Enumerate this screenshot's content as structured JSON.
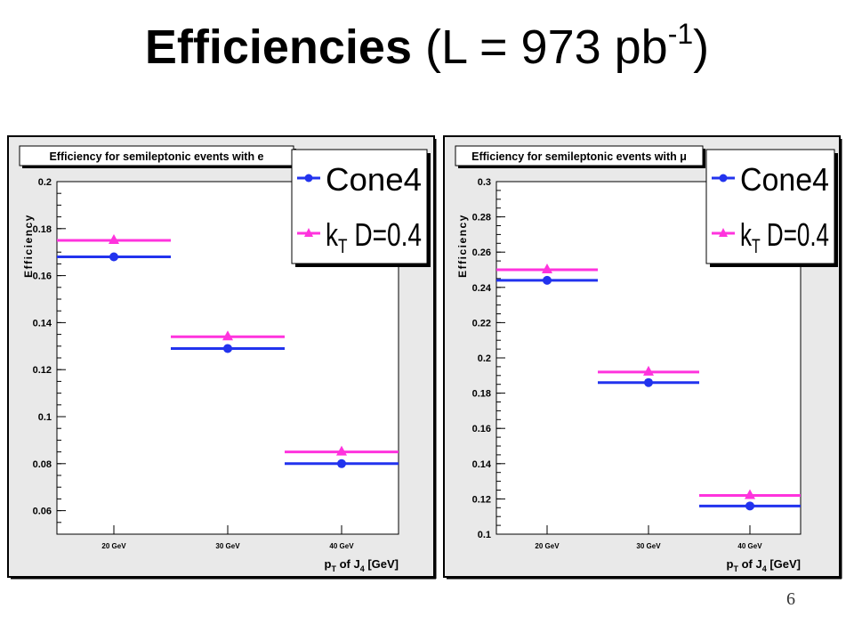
{
  "slide": {
    "title_bold": "Efficiencies",
    "title_rest": "(L = 973 pb",
    "title_sup": "-1",
    "title_close": ")",
    "page_number": "6"
  },
  "colors": {
    "cone4": "#2233ee",
    "kt": "#ff33dd",
    "frame_bg": "#e9e9e9",
    "plot_bg": "#ffffff"
  },
  "chart_data": [
    {
      "type": "scatter",
      "title": "Efficiency for semileptonic events with e",
      "ylabel": "Efficiency",
      "xlabel_main": "p",
      "xlabel_sub1": "T",
      "xlabel_mid": "of J",
      "xlabel_sub2": "4",
      "xlabel_end": "[GeV]",
      "categories": [
        "20 GeV",
        "30 GeV",
        "40 GeV"
      ],
      "ylim": [
        0.05,
        0.2
      ],
      "yticks": [
        0.06,
        0.08,
        0.1,
        0.12,
        0.14,
        0.16,
        0.18,
        0.2
      ],
      "ytick_labels": [
        "0.06",
        "0.08",
        "0.1",
        "0.12",
        "0.14",
        "0.16",
        "0.18",
        "0.2"
      ],
      "legend_position": "top-right",
      "series": [
        {
          "name": "Cone4",
          "name_main": "Cone4",
          "name_sub": "",
          "name_rest": "",
          "marker": "circle",
          "color_key": "cone4",
          "values": [
            0.168,
            0.129,
            0.08
          ]
        },
        {
          "name": "kT D=0.4",
          "name_main": "k",
          "name_sub": "T",
          "name_rest": " D=0.4",
          "marker": "triangle",
          "color_key": "kt",
          "values": [
            0.175,
            0.134,
            0.085
          ]
        }
      ]
    },
    {
      "type": "scatter",
      "title": "Efficiency for semileptonic events with μ",
      "ylabel": "Efficiency",
      "xlabel_main": "p",
      "xlabel_sub1": "T",
      "xlabel_mid": "of J",
      "xlabel_sub2": "4",
      "xlabel_end": "[GeV]",
      "categories": [
        "20 GeV",
        "30 GeV",
        "40 GeV"
      ],
      "ylim": [
        0.1,
        0.3
      ],
      "yticks": [
        0.1,
        0.12,
        0.14,
        0.16,
        0.18,
        0.2,
        0.22,
        0.24,
        0.26,
        0.28,
        0.3
      ],
      "ytick_labels": [
        "0.1",
        "0.12",
        "0.14",
        "0.16",
        "0.18",
        "0.2",
        "0.22",
        "0.24",
        "0.26",
        "0.28",
        "0.3"
      ],
      "legend_position": "top-right",
      "series": [
        {
          "name": "Cone4",
          "name_main": "Cone4",
          "name_sub": "",
          "name_rest": "",
          "marker": "circle",
          "color_key": "cone4",
          "values": [
            0.244,
            0.186,
            0.116
          ]
        },
        {
          "name": "kT D=0.4",
          "name_main": "k",
          "name_sub": "T",
          "name_rest": " D=0.4",
          "marker": "triangle",
          "color_key": "kt",
          "values": [
            0.25,
            0.192,
            0.122
          ]
        }
      ]
    }
  ]
}
